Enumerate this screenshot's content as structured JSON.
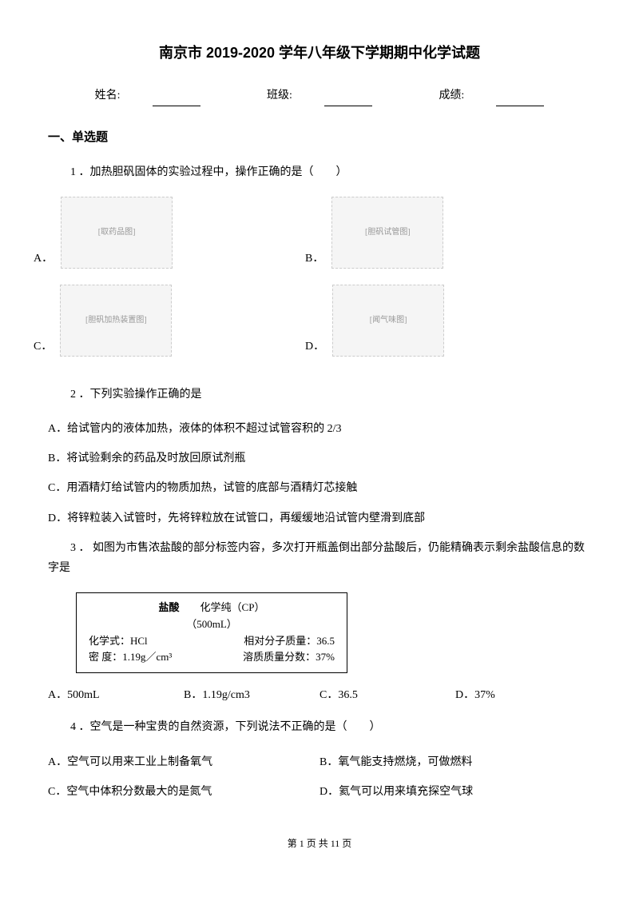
{
  "title": "南京市 2019-2020 学年八年级下学期期中化学试题",
  "info": {
    "name_label": "姓名:",
    "class_label": "班级:",
    "score_label": "成绩:"
  },
  "section1": {
    "header": "一、单选题",
    "q1": {
      "text": "1 ．加热胆矾固体的实验过程中，操作正确的是（　　）",
      "optA": "A．",
      "optA_img": "[取药品图]",
      "optB": "B．",
      "optB_img": "[胆矾试管图]",
      "optC": "C．",
      "optC_img": "[胆矾加热装置图]",
      "optD": "D．",
      "optD_img": "[闻气味图]"
    },
    "q2": {
      "text": "2 ．下列实验操作正确的是",
      "optA": "A．给试管内的液体加热，液体的体积不超过试管容积的 2/3",
      "optB": "B．将试验剩余的药品及时放回原试剂瓶",
      "optC": "C．用酒精灯给试管内的物质加热，试管的底部与酒精灯芯接触",
      "optD": "D．将锌粒装入试管时，先将锌粒放在试管口，再缓缓地沿试管内壁滑到底部"
    },
    "q3": {
      "text": "3 ． 如图为市售浓盐酸的部分标签内容，多次打开瓶盖倒出部分盐酸后，仍能精确表示剩余盐酸信息的数字是",
      "box": {
        "line1_bold": "盐酸",
        "line1_rest": "　　化学纯（CP）",
        "line2": "（500mL）",
        "line3_left": "化学式：HCl",
        "line3_right": "相对分子质量：36.5",
        "line4_left": "密 度：1.19g／cm³",
        "line4_right": "溶质质量分数：37%"
      },
      "optA": "A．500mL",
      "optB": "B．1.19g/cm3",
      "optC": "C．36.5",
      "optD": "D．37%"
    },
    "q4": {
      "text": "4 ．空气是一种宝贵的自然资源，下列说法不正确的是（　　）",
      "optA": "A．空气可以用来工业上制备氧气",
      "optB": "B．氧气能支持燃烧，可做燃料",
      "optC": "C．空气中体积分数最大的是氮气",
      "optD": "D．氦气可以用来填充探空气球"
    }
  },
  "footer": "第 1 页 共 11 页"
}
